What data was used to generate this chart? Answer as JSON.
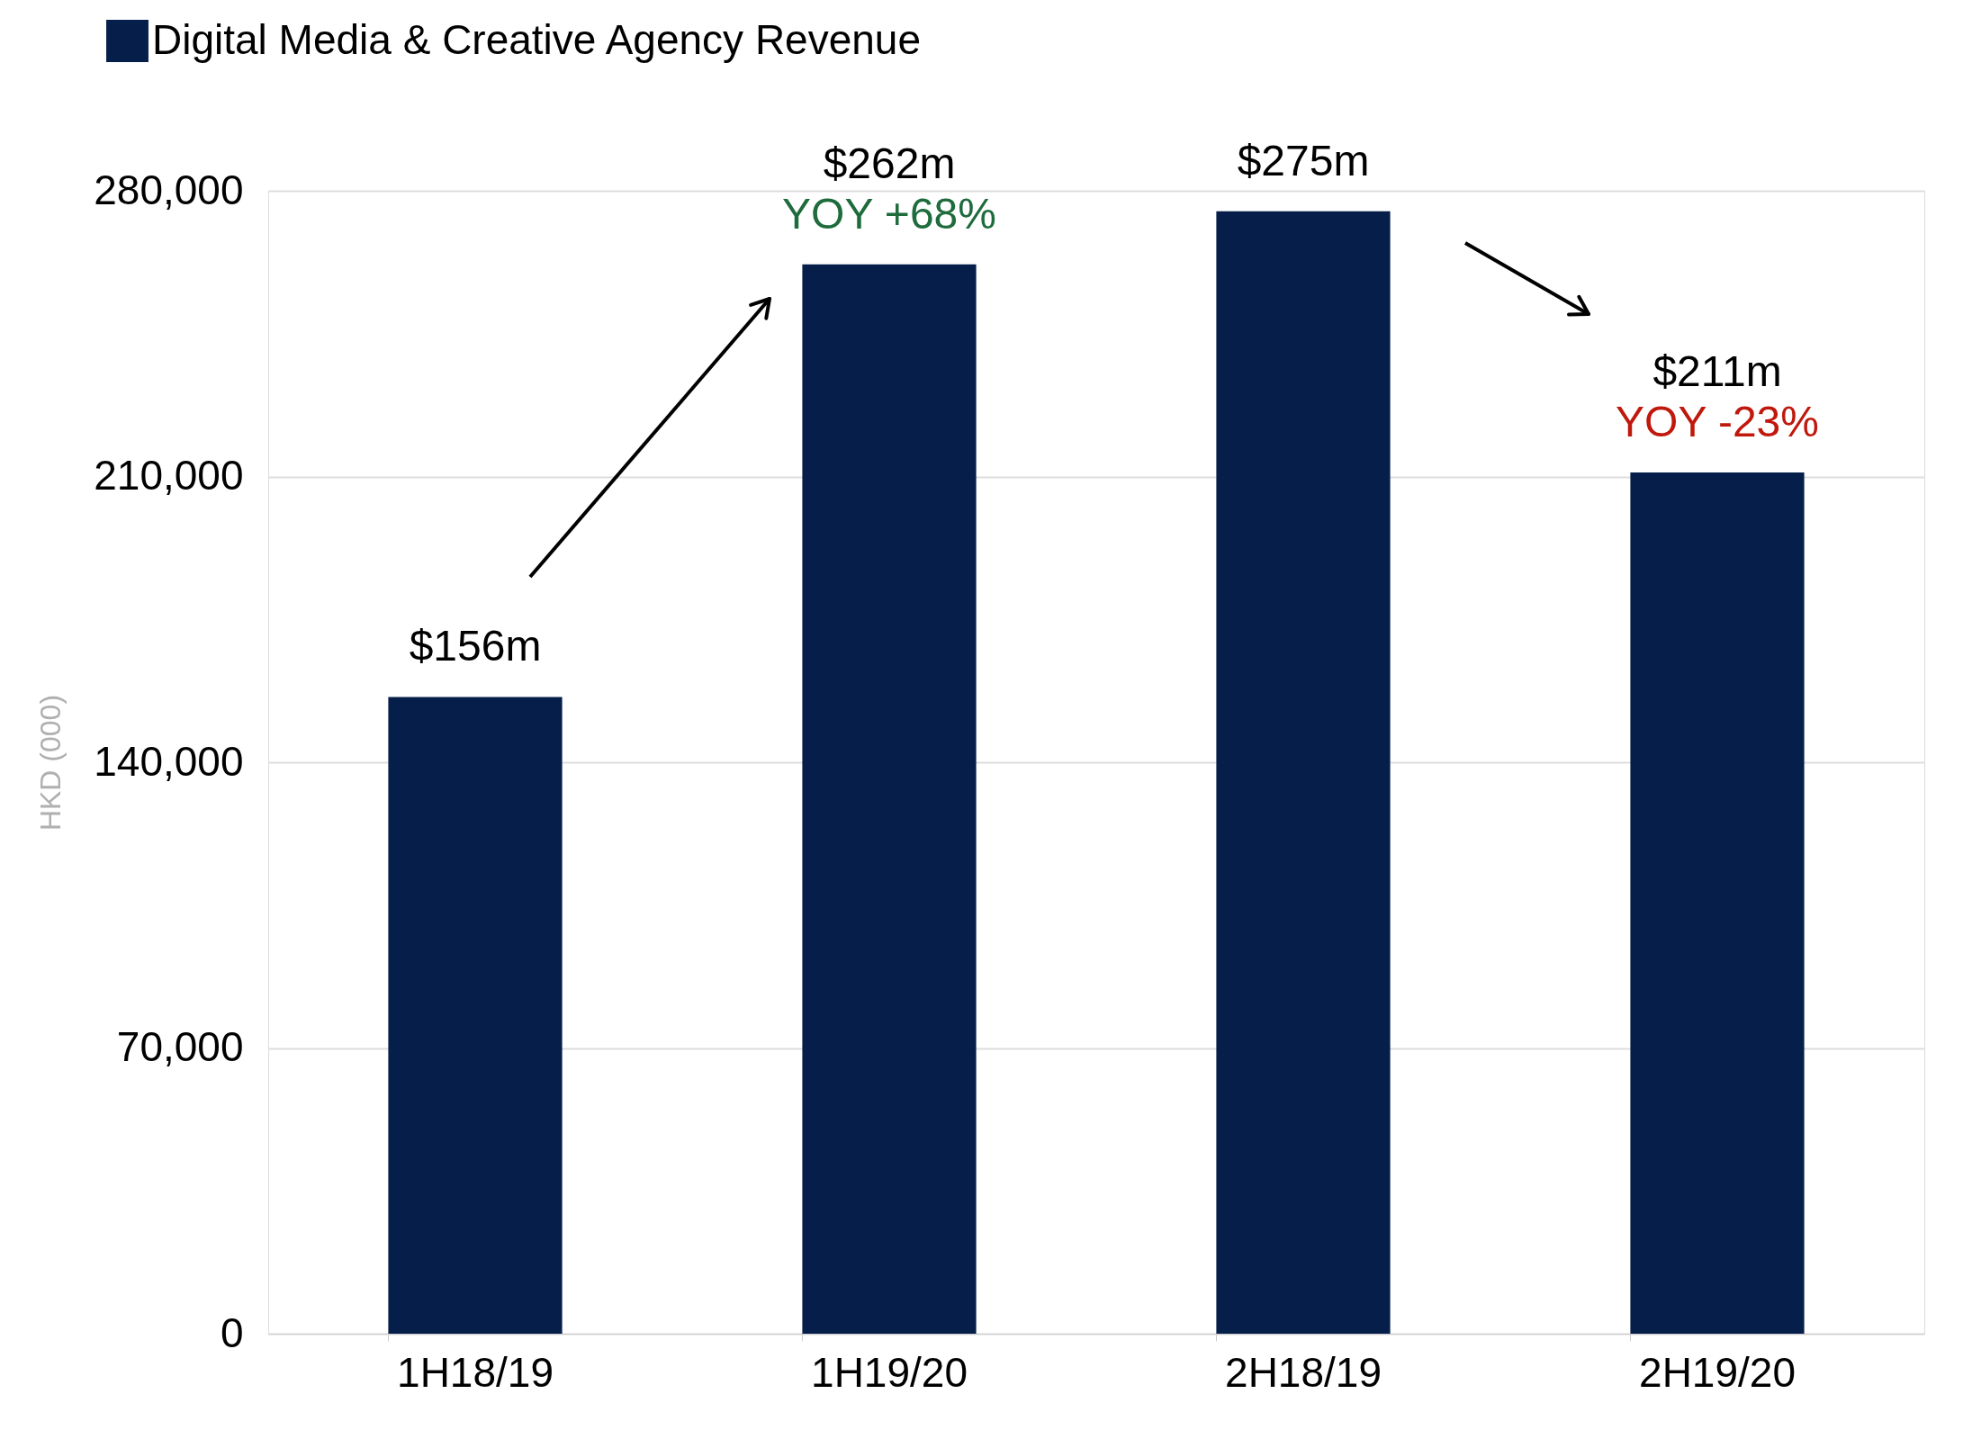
{
  "chart_data": {
    "type": "bar",
    "ylabel": "HKD (000)",
    "categories": [
      "1H18/19",
      "1H19/20",
      "2H18/19",
      "2H19/20"
    ],
    "series": [
      {
        "name": "Digital Media & Creative Agency Revenue",
        "color": "#051f4a",
        "values": [
          156000,
          262000,
          275000,
          211000
        ]
      }
    ],
    "ylim": [
      0,
      280000
    ],
    "yticks": [
      0,
      {
        "value": 70000,
        "label": "70,000"
      },
      {
        "value": 140000,
        "label": "140,000"
      },
      {
        "value": 210000,
        "label": "210,000"
      },
      {
        "value": 280000,
        "label": "280,000"
      }
    ],
    "grid": "y",
    "legend": "top left",
    "annotations": [
      {
        "text": "$156m",
        "x": "1H18/19",
        "y": 156000
      },
      {
        "text": "YOY +68%",
        "x": "1H19/20",
        "y": 262000
      },
      {
        "text": "$262m",
        "x": "1H19/20",
        "y": 262000
      },
      {
        "text": "$275m",
        "x": "2H18/19",
        "y": 275000
      },
      {
        "text": "YOY -23%",
        "x": "2H19/20",
        "y": 211000
      },
      {
        "text": "$211m",
        "x": "2H19/20",
        "y": 211000
      }
    ]
  }
}
